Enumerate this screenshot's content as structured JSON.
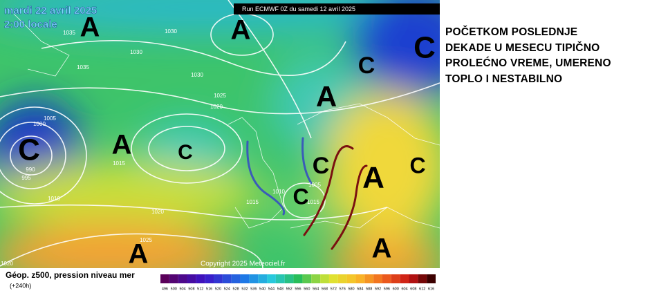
{
  "header": {
    "date": "mardi 22 avril 2025",
    "time": "2:00 locale",
    "run": "Run ECMWF 0Z du samedi 12 avril 2025"
  },
  "annotation": {
    "lines": [
      "POČETKOM POSLEDNJE",
      "DEKADE U MESECU TIPIČNO",
      "PROLEĆNO VREME, UMERENO",
      "TOPLO I NESTABILNO"
    ]
  },
  "pressure_labels": [
    "1035",
    "1030",
    "1030",
    "1035",
    "1030",
    "1025",
    "1020",
    "1005",
    "1000",
    "990",
    "995",
    "1015",
    "1010",
    "1020",
    "1025",
    "1020",
    "1010",
    "1015",
    "1005",
    "1015"
  ],
  "centers": [
    "A",
    "A",
    "C",
    "C",
    "A",
    "C",
    "A",
    "C",
    "C",
    "A",
    "C",
    "C",
    "A",
    "A"
  ],
  "copyright": "Copyright 2025 Meteociel.fr",
  "legend": {
    "title": "Géop. z500, pression niveau mer",
    "lead": "(+240h)",
    "ticks": [
      496,
      500,
      504,
      508,
      512,
      516,
      520,
      524,
      528,
      532,
      536,
      540,
      544,
      548,
      552,
      556,
      560,
      564,
      568,
      572,
      576,
      580,
      584,
      588,
      592,
      596,
      600,
      604,
      608,
      612,
      616
    ]
  }
}
